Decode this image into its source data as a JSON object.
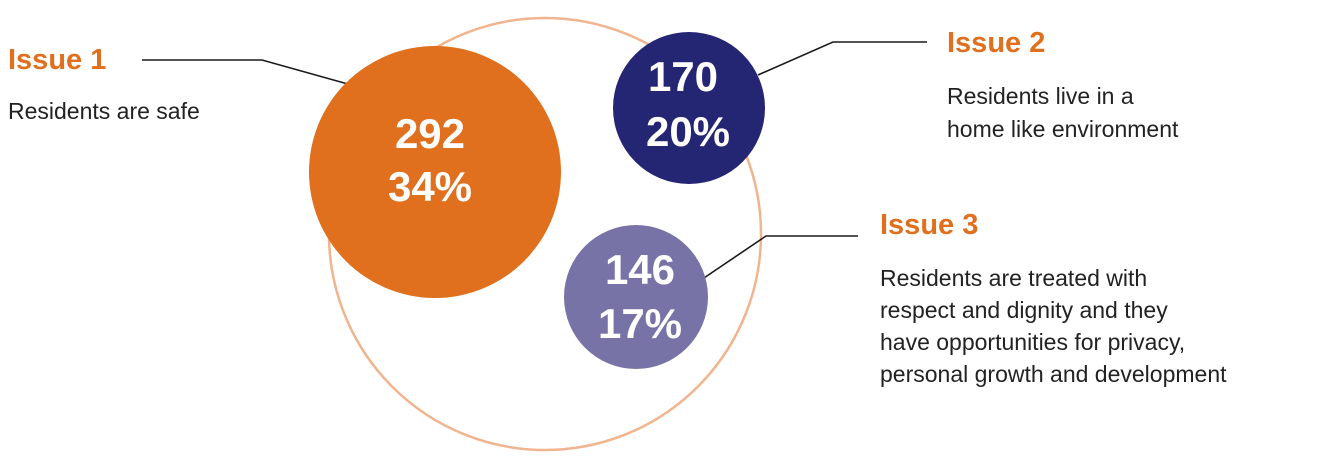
{
  "colors": {
    "outline": "#f0b58f",
    "issue_1": "#e06f1e",
    "issue_2": "#242573",
    "issue_3": "#7873a7",
    "title": "#e06f1e",
    "leader": "#1a1a1a"
  },
  "issues": [
    {
      "title": "Issue 1",
      "value": "292",
      "percent": "34%",
      "description": [
        "Residents are safe"
      ]
    },
    {
      "title": "Issue 2",
      "value": "170",
      "percent": "20%",
      "description": [
        "Residents live in a",
        "home like environment"
      ]
    },
    {
      "title": "Issue 3",
      "value": "146",
      "percent": "17%",
      "description": [
        "Residents are treated with",
        "respect and dignity and they",
        "have opportunities for privacy,",
        "personal growth and development"
      ]
    }
  ]
}
